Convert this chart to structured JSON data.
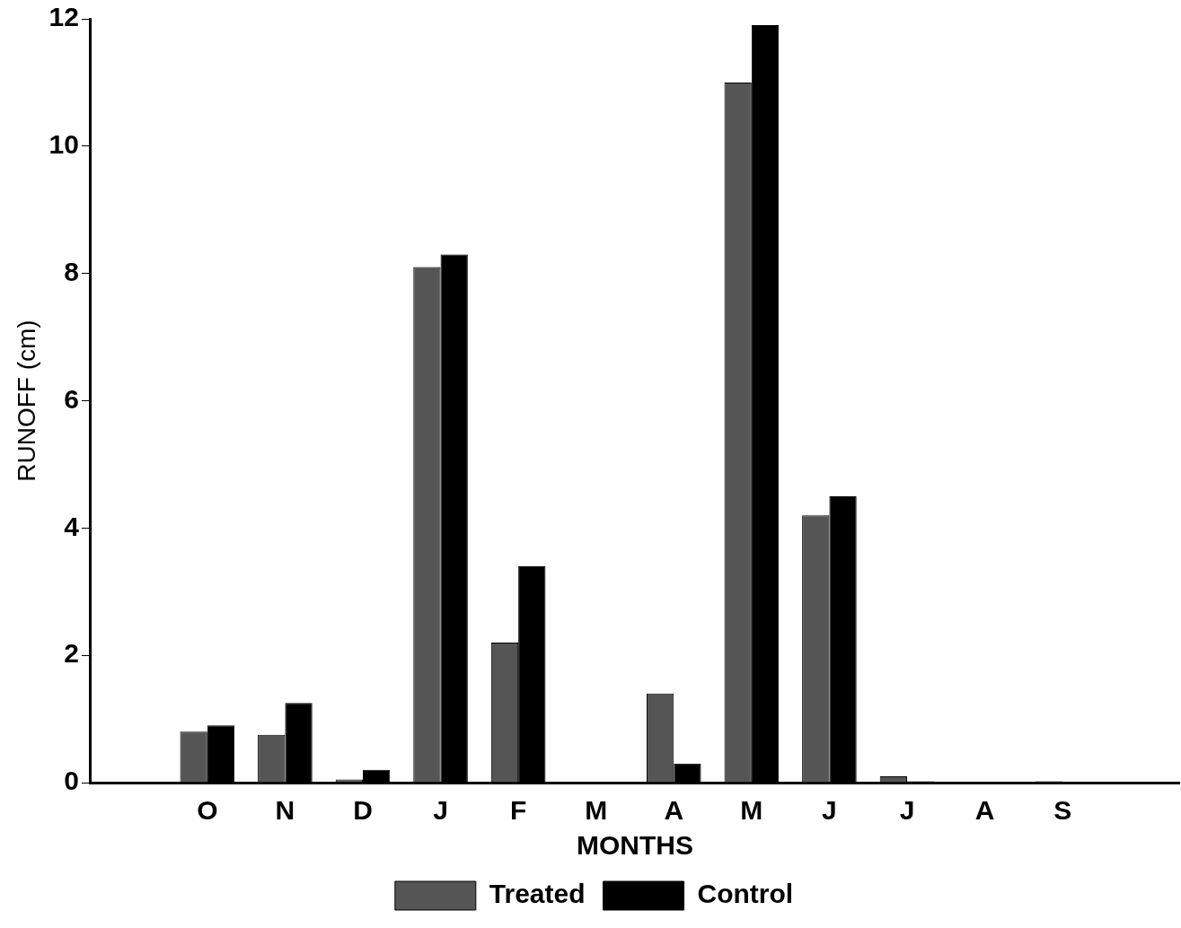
{
  "chart_data": {
    "type": "bar",
    "xlabel": "MONTHS",
    "ylabel": "RUNOFF (cm)",
    "categories": [
      null,
      "O",
      "N",
      "D",
      "J",
      "F",
      "M",
      "A",
      "M",
      "J",
      "J",
      "A",
      "S",
      null
    ],
    "series": [
      {
        "name": "Treated",
        "color": "#555555",
        "values": [
          0,
          0.8,
          0.75,
          0.05,
          8.1,
          2.2,
          0,
          1.4,
          11.0,
          4.2,
          0.1,
          0,
          0.02,
          0
        ]
      },
      {
        "name": "Control",
        "color": "#000000",
        "values": [
          0,
          0.9,
          1.25,
          0.2,
          8.3,
          3.4,
          0,
          0.3,
          11.9,
          4.5,
          0.02,
          0,
          0,
          0
        ]
      }
    ],
    "ylim": [
      0,
      12
    ],
    "yticks": [
      0,
      2,
      4,
      6,
      8,
      10,
      12
    ],
    "grid": false,
    "legend": "bottom"
  }
}
